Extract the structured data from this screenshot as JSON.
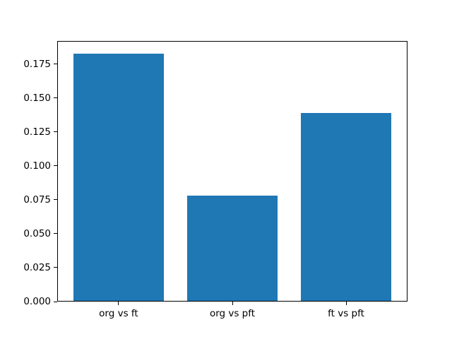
{
  "chart_data": {
    "type": "bar",
    "title": "",
    "xlabel": "",
    "ylabel": "",
    "categories": [
      "org vs ft",
      "org vs pft",
      "ft vs pft"
    ],
    "values": [
      0.183,
      0.078,
      0.139
    ],
    "yticks": [
      0,
      0.025,
      0.05,
      0.075,
      0.1,
      0.125,
      0.15,
      0.175
    ],
    "ytick_labels": [
      "0.000",
      "0.025",
      "0.050",
      "0.075",
      "0.100",
      "0.125",
      "0.150",
      "0.175"
    ],
    "ylim": [
      0,
      0.19215
    ],
    "xlim": [
      -0.54,
      2.54
    ],
    "bar_width": 0.8,
    "grid": false,
    "legend": false,
    "colors": {
      "bar": "#1f77b4",
      "spine": "#000000",
      "tick": "#000000",
      "text": "#000000",
      "background": "#ffffff"
    }
  }
}
